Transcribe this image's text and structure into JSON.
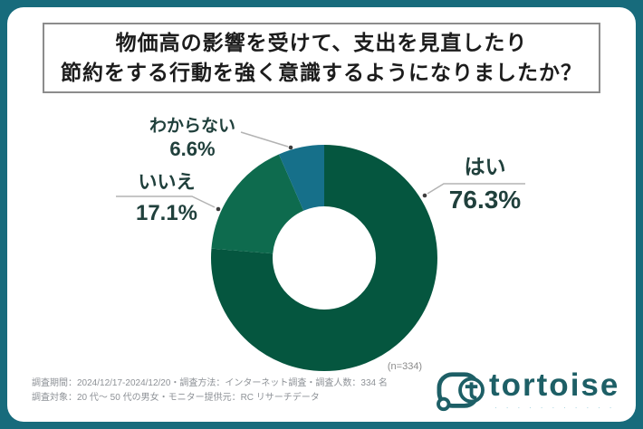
{
  "frame": {
    "bg_color": "#176b7c",
    "card_color": "#ffffff"
  },
  "title": {
    "line1": "物価高の影響を受けて、支出を見直したり",
    "line2": "節約をする行動を強く意識するようになりましたか？"
  },
  "chart_data": {
    "type": "pie",
    "donut": true,
    "title": "物価高の影響を受けて、支出を見直したり節約をする行動を強く意識するようになりましたか？",
    "start_angle_deg": 0,
    "direction": "clockwise",
    "unit": "%",
    "sample_label": "(n=334)",
    "segments": [
      {
        "label": "はい",
        "value": 76.3,
        "pct_label": "76.3%",
        "color": "#05563f"
      },
      {
        "label": "いいえ",
        "value": 17.1,
        "pct_label": "17.1%",
        "color": "#0e6b4e"
      },
      {
        "label": "わからない",
        "value": 6.6,
        "pct_label": "6.6%",
        "color": "#16708a"
      }
    ]
  },
  "footnotes": {
    "line1": "調査期間：2024/12/17-2024/12/20・調査方法：インターネット調査・調査人数：334 名",
    "line2": "調査対象：20 代～ 50 代の男女・モニター提供元：RC リサーチデータ"
  },
  "logo": {
    "wordmark": "tortoise",
    "tagline": "･ ･ ･ ･ ･ ･ ･ ･ ･ ･ ･",
    "color": "#1d5f66"
  }
}
